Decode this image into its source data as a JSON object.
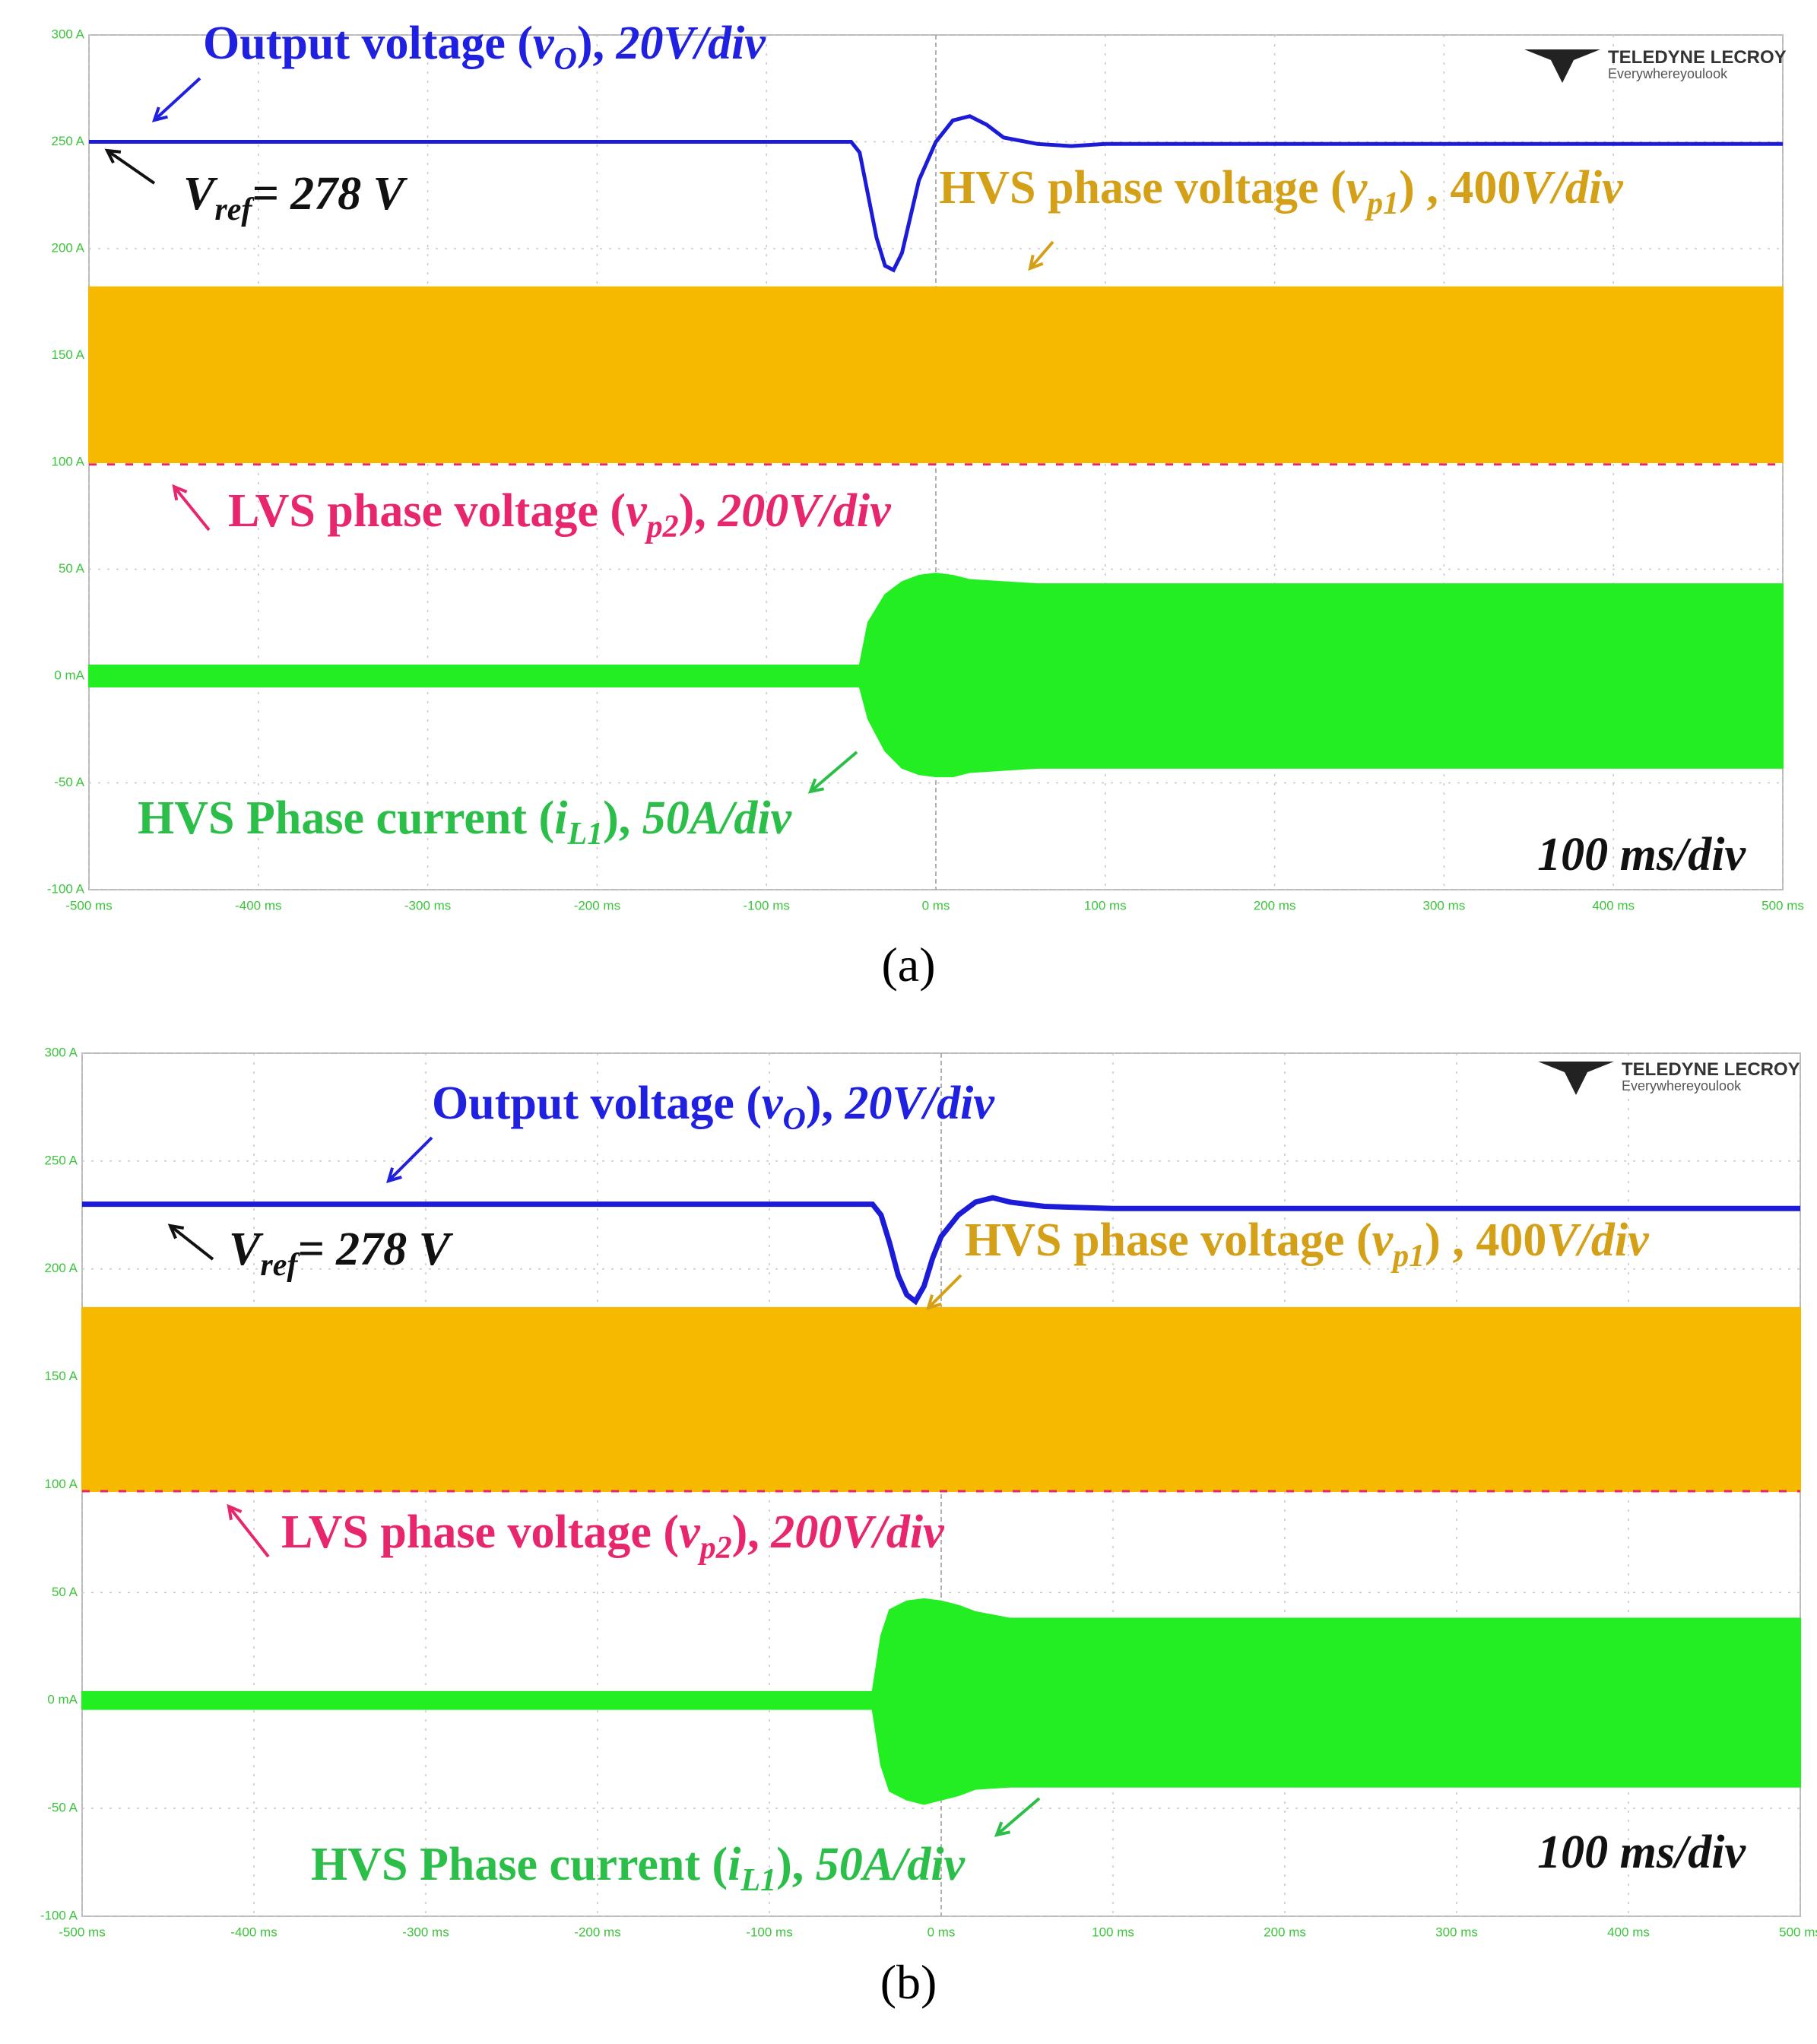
{
  "chart_data": [
    {
      "type": "line",
      "title": "(a)",
      "xlim": [
        -500,
        500
      ],
      "ylim": [
        -100,
        300
      ],
      "grid": true,
      "xticks": [
        {
          "value": -500,
          "label": "-500 ms"
        },
        {
          "value": -400,
          "label": "-400 ms"
        },
        {
          "value": -300,
          "label": "-300 ms"
        },
        {
          "value": -200,
          "label": "-200 ms"
        },
        {
          "value": -100,
          "label": "-100 ms"
        },
        {
          "value": 0,
          "label": "0 ms"
        },
        {
          "value": 100,
          "label": "100 ms"
        },
        {
          "value": 200,
          "label": "200 ms"
        },
        {
          "value": 300,
          "label": "300 ms"
        },
        {
          "value": 400,
          "label": "400 ms"
        },
        {
          "value": 500,
          "label": "500 ms"
        }
      ],
      "yticks": [
        {
          "value": 300,
          "label": "300 A"
        },
        {
          "value": 250,
          "label": "250 A"
        },
        {
          "value": 200,
          "label": "200 A"
        },
        {
          "value": 150,
          "label": "150 A"
        },
        {
          "value": 100,
          "label": "100 A"
        },
        {
          "value": 50,
          "label": "50 A"
        },
        {
          "value": 0,
          "label": "0 mA"
        },
        {
          "value": -50,
          "label": "-50 A"
        },
        {
          "value": -100,
          "label": "-100 A"
        }
      ],
      "series": [
        {
          "color": "#f7b900",
          "x": [
            -500,
            500
          ],
          "values": [
            182,
            182
          ],
          "lower": [
            100,
            100
          ]
        },
        {
          "color": "#e8266e",
          "x": [
            -500,
            500
          ],
          "values": [
            99,
            99
          ]
        },
        {
          "color": "#22ee22",
          "x": [
            -500,
            -45,
            -40,
            -30,
            -20,
            -10,
            0,
            10,
            20,
            40,
            60,
            500
          ],
          "values": [
            5,
            5,
            25,
            38,
            44,
            47,
            48,
            47,
            45,
            44,
            43,
            43
          ],
          "lower": [
            -5,
            -5,
            -20,
            -35,
            -43,
            -46,
            -47,
            -47,
            -45,
            -44,
            -43,
            -43
          ]
        },
        {
          "color": "#1c1cd8",
          "x": [
            -500,
            -50,
            -45,
            -40,
            -35,
            -30,
            -25,
            -20,
            -15,
            -10,
            0,
            10,
            20,
            30,
            40,
            60,
            80,
            100,
            150,
            500
          ],
          "values": [
            250,
            250,
            245,
            225,
            205,
            192,
            190,
            198,
            215,
            232,
            250,
            260,
            262,
            258,
            252,
            249,
            248,
            249,
            249,
            249
          ]
        }
      ],
      "annotations": [
        {
          "color": "#2020e0",
          "parts": [
            {
              "text": "Output voltage ("
            },
            {
              "text": "v",
              "italic": true
            },
            {
              "text": "O",
              "sub": true,
              "italic": true
            },
            {
              "text": "), "
            },
            {
              "text": "20V/div",
              "italic": true
            }
          ]
        },
        {
          "color": "#111111",
          "parts": [
            {
              "text": "V",
              "italic": true
            },
            {
              "text": "ref",
              "sub": true,
              "italic": true
            },
            {
              "text": "= 278 V",
              "italic": true
            }
          ]
        },
        {
          "color": "#d4a017",
          "parts": [
            {
              "text": "HVS phase voltage ("
            },
            {
              "text": "v",
              "italic": true
            },
            {
              "text": "p1",
              "sub": true,
              "italic": true
            },
            {
              "text": ") , 400"
            },
            {
              "text": "V/div",
              "italic": true
            }
          ]
        },
        {
          "color": "#e8266e",
          "parts": [
            {
              "text": "LVS phase voltage ("
            },
            {
              "text": "v",
              "italic": true
            },
            {
              "text": "p2",
              "sub": true,
              "italic": true
            },
            {
              "text": "), "
            },
            {
              "text": "200V/div",
              "italic": true
            }
          ]
        },
        {
          "color": "#2bbf4a",
          "parts": [
            {
              "text": "HVS Phase current ("
            },
            {
              "text": "i",
              "italic": true
            },
            {
              "text": "L1",
              "sub": true,
              "italic": true
            },
            {
              "text": "), "
            },
            {
              "text": "50A/div",
              "italic": true
            }
          ]
        }
      ],
      "timebase": "100 ms/div",
      "logo": [
        "TELEDYNE LECROY",
        "Everywhereyoulook"
      ]
    },
    {
      "type": "line",
      "title": "(b)",
      "xlim": [
        -500,
        500
      ],
      "ylim": [
        -100,
        300
      ],
      "grid": true,
      "xticks": [
        {
          "value": -500,
          "label": "-500 ms"
        },
        {
          "value": -400,
          "label": "-400 ms"
        },
        {
          "value": -300,
          "label": "-300 ms"
        },
        {
          "value": -200,
          "label": "-200 ms"
        },
        {
          "value": -100,
          "label": "-100 ms"
        },
        {
          "value": 0,
          "label": "0 ms"
        },
        {
          "value": 100,
          "label": "100 ms"
        },
        {
          "value": 200,
          "label": "200 ms"
        },
        {
          "value": 300,
          "label": "300 ms"
        },
        {
          "value": 400,
          "label": "400 ms"
        },
        {
          "value": 500,
          "label": "500 ms"
        }
      ],
      "yticks": [
        {
          "value": 300,
          "label": "300 A"
        },
        {
          "value": 250,
          "label": "250 A"
        },
        {
          "value": 200,
          "label": "200 A"
        },
        {
          "value": 150,
          "label": "150 A"
        },
        {
          "value": 100,
          "label": "100 A"
        },
        {
          "value": 50,
          "label": "50 A"
        },
        {
          "value": 0,
          "label": "0 mA"
        },
        {
          "value": -50,
          "label": "-50 A"
        },
        {
          "value": -100,
          "label": "-100 A"
        }
      ],
      "series": [
        {
          "color": "#f7b900",
          "x": [
            -500,
            500
          ],
          "values": [
            182,
            182
          ],
          "lower": [
            97,
            97
          ]
        },
        {
          "color": "#e8266e",
          "x": [
            -500,
            500
          ],
          "values": [
            97,
            97
          ]
        },
        {
          "color": "#22ee22",
          "x": [
            -500,
            -40,
            -35,
            -30,
            -20,
            -10,
            0,
            10,
            20,
            40,
            500
          ],
          "values": [
            4,
            4,
            30,
            42,
            46,
            47,
            46,
            44,
            41,
            38,
            38
          ],
          "lower": [
            -4,
            -4,
            -30,
            -42,
            -46,
            -48,
            -46,
            -44,
            -41,
            -40,
            -40
          ]
        },
        {
          "color": "#1c1cd8",
          "x": [
            -500,
            -40,
            -35,
            -30,
            -25,
            -20,
            -15,
            -10,
            -5,
            0,
            10,
            20,
            30,
            40,
            60,
            100,
            500
          ],
          "values": [
            230,
            230,
            225,
            212,
            197,
            188,
            185,
            192,
            205,
            215,
            225,
            231,
            233,
            231,
            229,
            228,
            228
          ]
        }
      ],
      "annotations": [
        {
          "color": "#2020e0",
          "parts": [
            {
              "text": "Output voltage ("
            },
            {
              "text": "v",
              "italic": true
            },
            {
              "text": "O",
              "sub": true,
              "italic": true
            },
            {
              "text": "), "
            },
            {
              "text": "20V/div",
              "italic": true
            }
          ]
        },
        {
          "color": "#111111",
          "parts": [
            {
              "text": "V",
              "italic": true
            },
            {
              "text": "ref",
              "sub": true,
              "italic": true
            },
            {
              "text": "= 278 V",
              "italic": true
            }
          ]
        },
        {
          "color": "#d4a017",
          "parts": [
            {
              "text": "HVS phase voltage ("
            },
            {
              "text": "v",
              "italic": true
            },
            {
              "text": "p1",
              "sub": true,
              "italic": true
            },
            {
              "text": ") , 400"
            },
            {
              "text": "V/div",
              "italic": true
            }
          ]
        },
        {
          "color": "#e8266e",
          "parts": [
            {
              "text": "LVS phase voltage ("
            },
            {
              "text": "v",
              "italic": true
            },
            {
              "text": "p2",
              "sub": true,
              "italic": true
            },
            {
              "text": "), "
            },
            {
              "text": "200V/div",
              "italic": true
            }
          ]
        },
        {
          "color": "#2bbf4a",
          "parts": [
            {
              "text": "HVS Phase current ("
            },
            {
              "text": "i",
              "italic": true
            },
            {
              "text": "L1",
              "sub": true,
              "italic": true
            },
            {
              "text": "), "
            },
            {
              "text": "50A/div",
              "italic": true
            }
          ]
        }
      ],
      "timebase": "100 ms/div",
      "logo": [
        "TELEDYNE LECROY",
        "Everywhereyoulook"
      ]
    }
  ]
}
